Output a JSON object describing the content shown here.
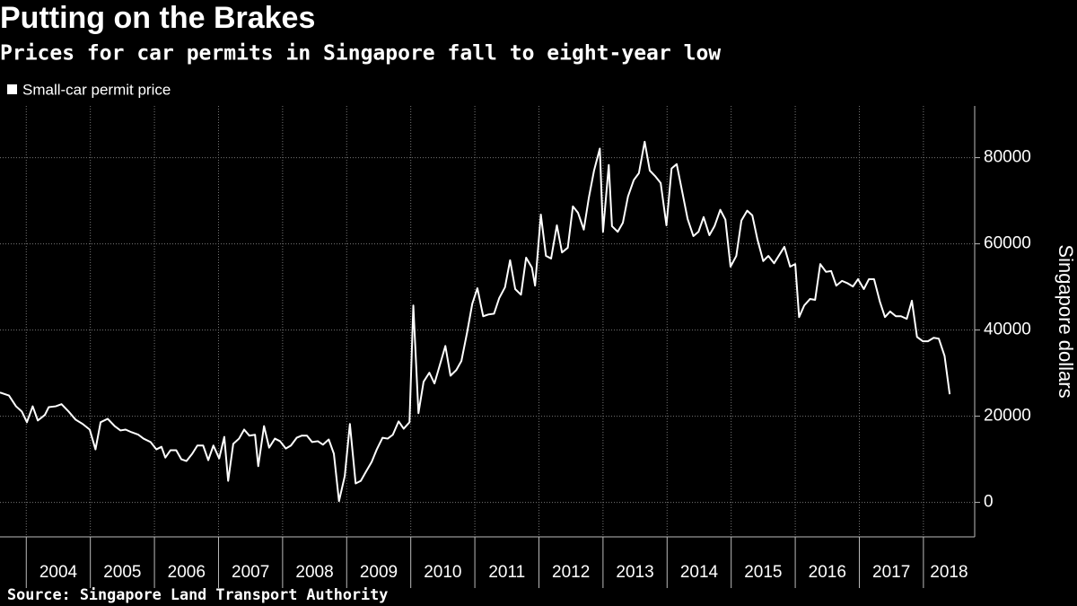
{
  "chart_data": {
    "type": "line",
    "title": "Putting on the Brakes",
    "subtitle": "Prices for car permits in Singapore fall to eight-year low",
    "source": "Source: Singapore Land Transport Authority",
    "y_label": "Singapore dollars",
    "grid": true,
    "xlim": [
      2003.59,
      2018.8
    ],
    "xticks": [
      2004,
      2005,
      2006,
      2007,
      2008,
      2009,
      2010,
      2011,
      2012,
      2013,
      2014,
      2015,
      2016,
      2017,
      2018
    ],
    "ylim": [
      -8000,
      92000
    ],
    "yticks": [
      0,
      20000,
      40000,
      60000,
      80000
    ],
    "x": [
      2003.59,
      2003.73,
      2003.84,
      2003.93,
      2004.01,
      2004.1,
      2004.18,
      2004.29,
      2004.35,
      2004.46,
      2004.55,
      2004.66,
      2004.77,
      2004.88,
      2004.99,
      2005.08,
      2005.16,
      2005.27,
      2005.38,
      2005.47,
      2005.55,
      2005.64,
      2005.75,
      2005.83,
      2005.94,
      2006.03,
      2006.11,
      2006.17,
      2006.25,
      2006.34,
      2006.42,
      2006.5,
      2006.59,
      2006.67,
      2006.76,
      2006.84,
      2006.92,
      2007.01,
      2007.09,
      2007.15,
      2007.23,
      2007.32,
      2007.4,
      2007.48,
      2007.57,
      2007.62,
      2007.71,
      2007.79,
      2007.88,
      2007.96,
      2008.05,
      2008.13,
      2008.22,
      2008.3,
      2008.38,
      2008.46,
      2008.55,
      2008.63,
      2008.72,
      2008.8,
      2008.88,
      2008.97,
      2009.05,
      2009.14,
      2009.22,
      2009.3,
      2009.39,
      2009.47,
      2009.56,
      2009.64,
      2009.72,
      2009.81,
      2009.89,
      2009.98,
      2010.04,
      2010.12,
      2010.2,
      2010.29,
      2010.37,
      2010.46,
      2010.54,
      2010.62,
      2010.71,
      2010.79,
      2010.88,
      2010.96,
      2011.04,
      2011.13,
      2011.21,
      2011.3,
      2011.38,
      2011.47,
      2011.55,
      2011.63,
      2011.72,
      2011.8,
      2011.89,
      2011.94,
      2012.03,
      2012.11,
      2012.19,
      2012.28,
      2012.36,
      2012.45,
      2012.53,
      2012.61,
      2012.7,
      2012.78,
      2012.86,
      2012.95,
      2013.0,
      2013.09,
      2013.14,
      2013.23,
      2013.31,
      2013.39,
      2013.48,
      2013.56,
      2013.65,
      2013.73,
      2013.82,
      2013.9,
      2013.99,
      2014.07,
      2014.15,
      2014.24,
      2014.32,
      2014.41,
      2014.49,
      2014.57,
      2014.66,
      2014.74,
      2014.83,
      2014.91,
      2014.99,
      2015.08,
      2015.16,
      2015.25,
      2015.33,
      2015.41,
      2015.5,
      2015.58,
      2015.67,
      2015.75,
      2015.83,
      2015.92,
      2016.0,
      2016.06,
      2016.14,
      2016.23,
      2016.31,
      2016.39,
      2016.48,
      2016.56,
      2016.64,
      2016.73,
      2016.81,
      2016.9,
      2016.98,
      2017.07,
      2017.15,
      2017.23,
      2017.32,
      2017.4,
      2017.48,
      2017.57,
      2017.65,
      2017.74,
      2017.82,
      2017.9,
      2017.99,
      2018.07,
      2018.16,
      2018.24,
      2018.33,
      2018.41
    ],
    "series": [
      {
        "name": "Small-car permit price",
        "color": "#ffffff",
        "values": [
          25500,
          24800,
          22300,
          21100,
          18600,
          22300,
          19000,
          20300,
          22100,
          22300,
          22800,
          21100,
          19200,
          18200,
          16900,
          12300,
          18600,
          19400,
          17700,
          16700,
          16900,
          16300,
          15700,
          14800,
          14000,
          12300,
          12900,
          10400,
          12100,
          12100,
          10000,
          9600,
          11300,
          13200,
          13200,
          9800,
          13200,
          10200,
          15200,
          5000,
          13600,
          14800,
          16900,
          15500,
          15700,
          8400,
          17700,
          12700,
          14800,
          14200,
          12500,
          13200,
          15000,
          15500,
          15500,
          14000,
          14200,
          13400,
          14600,
          11300,
          300,
          6100,
          18200,
          4400,
          5000,
          7100,
          9400,
          12300,
          15000,
          14800,
          15700,
          18800,
          17100,
          18600,
          45700,
          20700,
          28000,
          30100,
          27600,
          32200,
          36300,
          29400,
          30700,
          32800,
          39500,
          46100,
          49700,
          43200,
          43600,
          43800,
          47400,
          49900,
          56200,
          49500,
          48200,
          56800,
          54500,
          50300,
          66800,
          57200,
          56600,
          64300,
          58000,
          59100,
          68700,
          67200,
          63300,
          70800,
          77000,
          82100,
          62800,
          78300,
          64100,
          62800,
          64900,
          71000,
          74800,
          76400,
          83700,
          77000,
          75600,
          74100,
          64300,
          77500,
          78500,
          71800,
          65800,
          61800,
          62800,
          66200,
          62000,
          64100,
          67900,
          65600,
          54700,
          57200,
          65400,
          67700,
          66600,
          61000,
          56000,
          57200,
          55500,
          57400,
          59300,
          54700,
          55300,
          43000,
          45700,
          47200,
          47000,
          55300,
          53500,
          53700,
          50300,
          51400,
          50900,
          50100,
          51800,
          49500,
          51800,
          51800,
          46600,
          43000,
          44300,
          43200,
          43200,
          42600,
          46800,
          38400,
          37400,
          37400,
          38200,
          38000,
          34000,
          25100
        ]
      }
    ]
  }
}
